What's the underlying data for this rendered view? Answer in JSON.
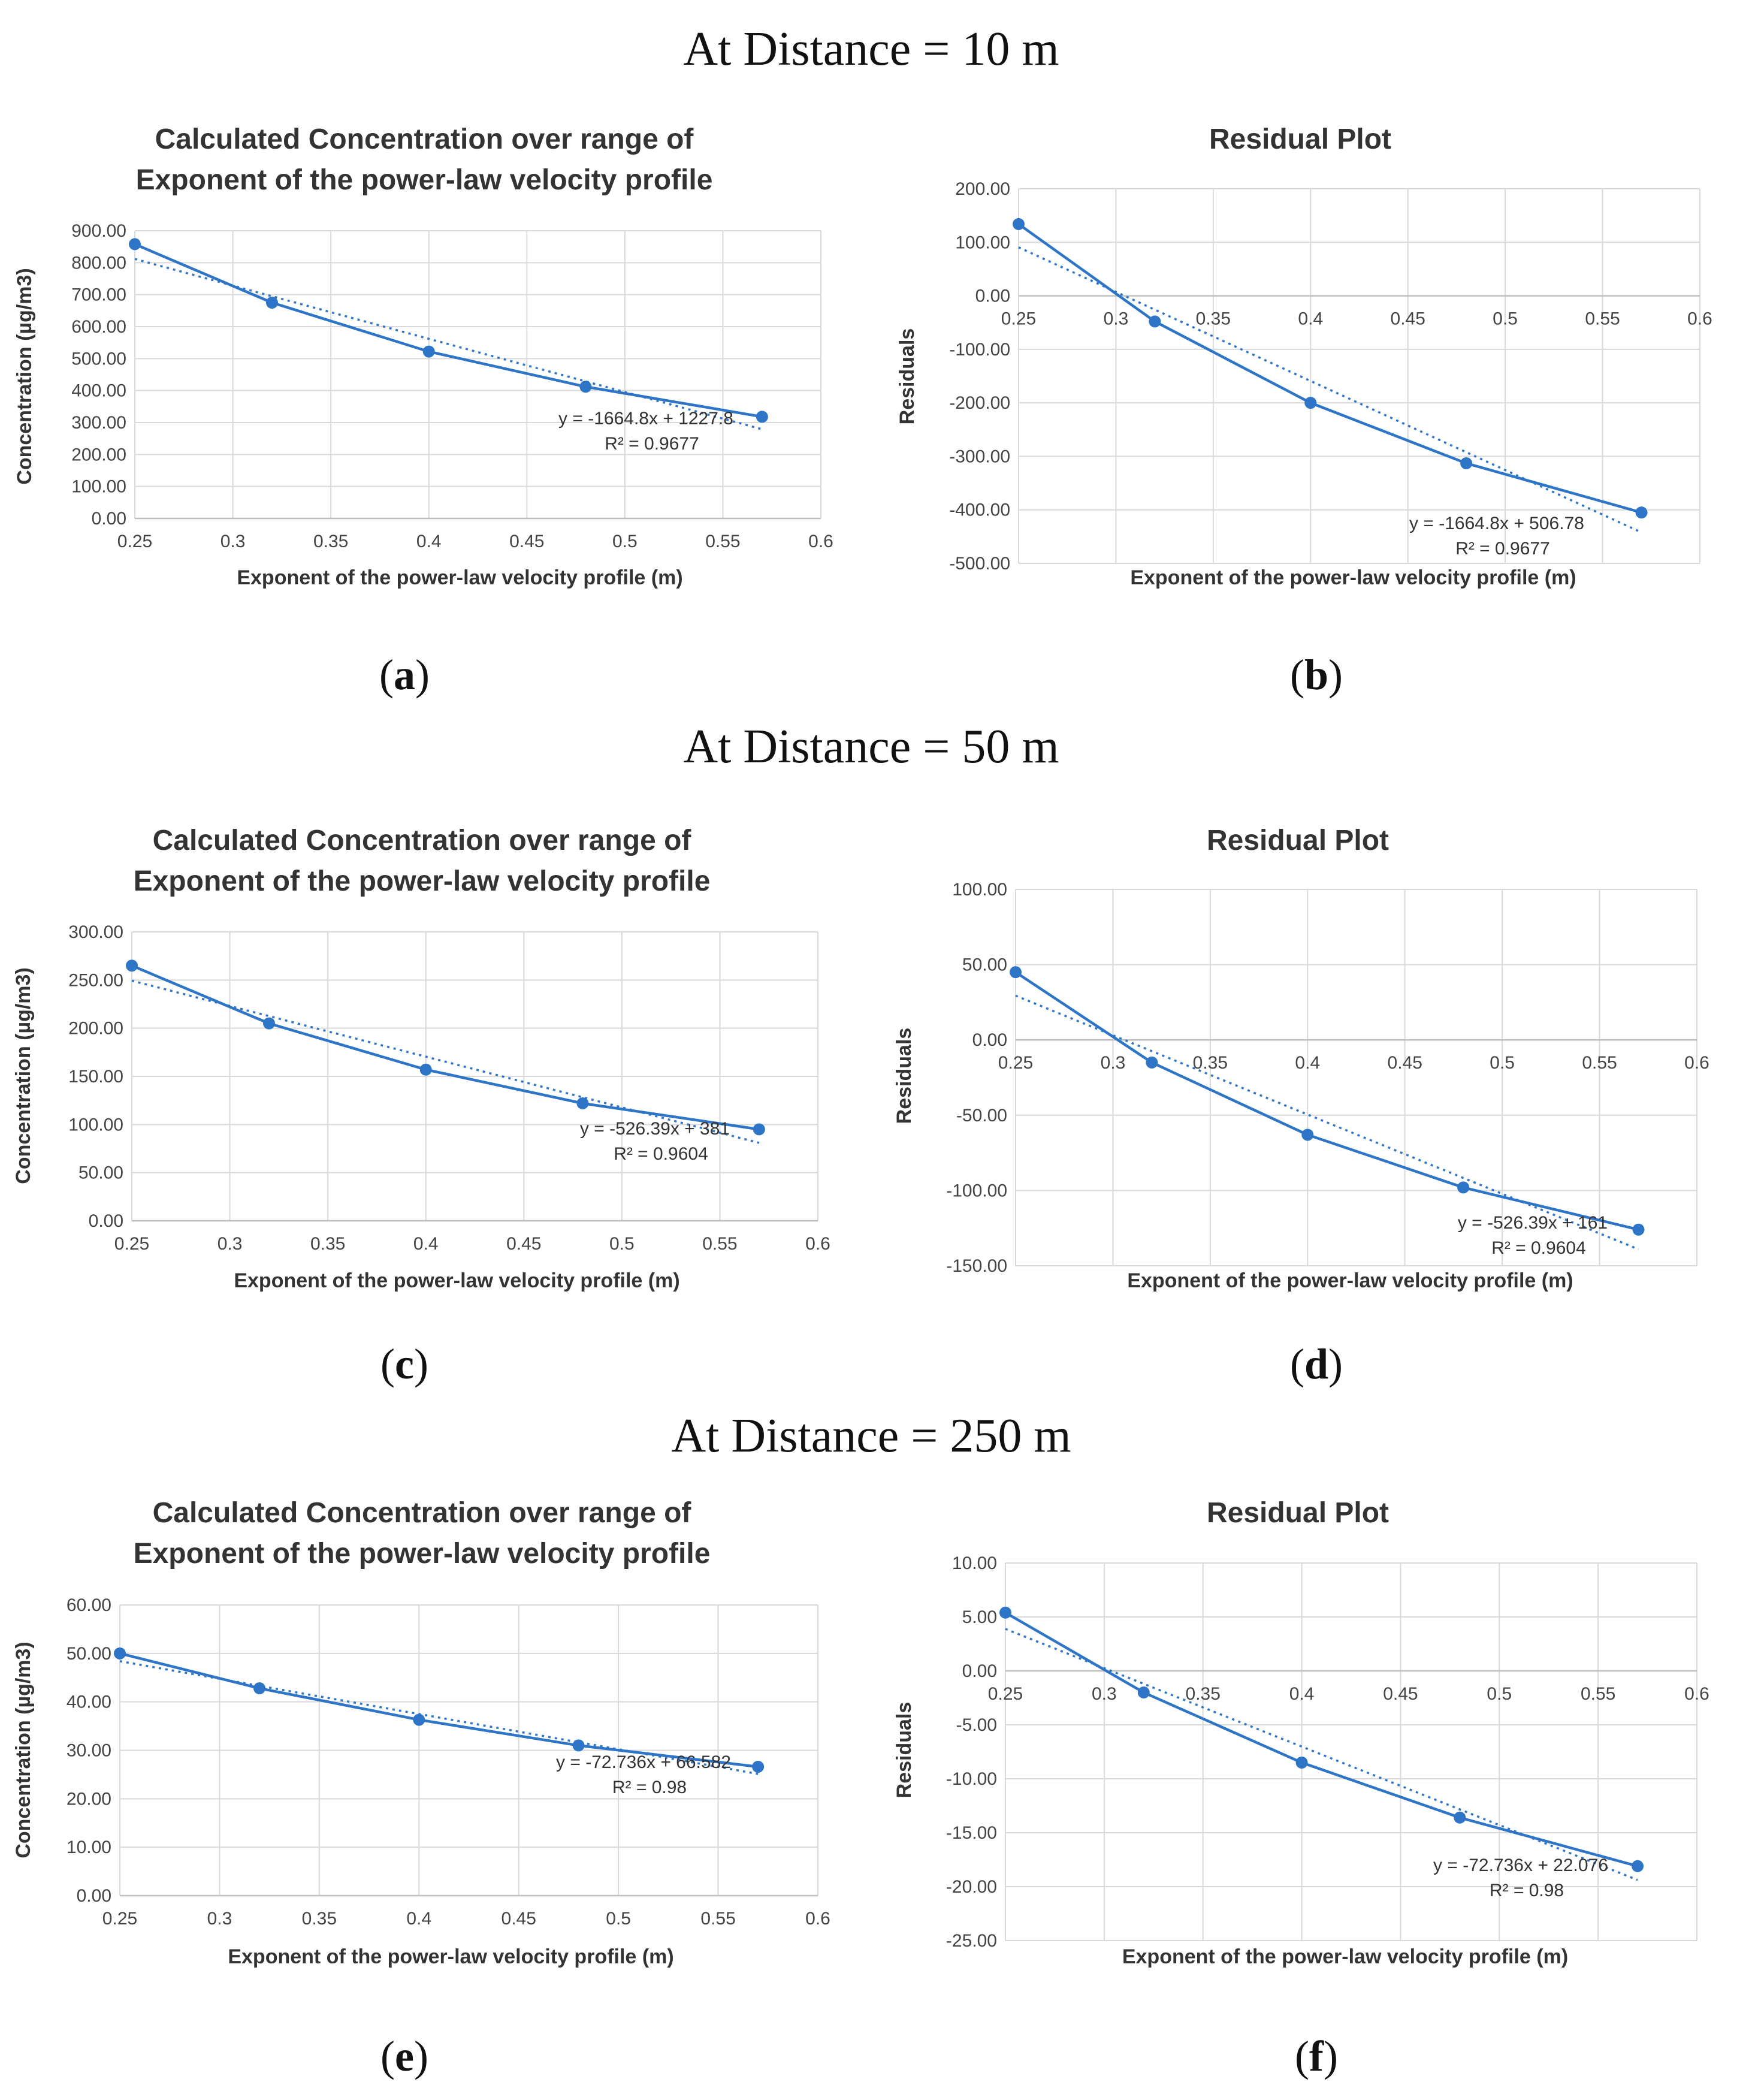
{
  "sections": [
    {
      "title": "At Distance = 10 m"
    },
    {
      "title": "At Distance = 50 m"
    },
    {
      "title": "At Distance = 250 m"
    }
  ],
  "chart_data": [
    {
      "id": "a",
      "type": "line",
      "panel_letter": "a",
      "title": [
        "Calculated Concentration over range of",
        "Exponent of the power-law velocity profile"
      ],
      "xlabel": "Exponent of the power-law velocity profile (m)",
      "ylabel": "Concentration (µg/m3)",
      "xlim": [
        0.25,
        0.6
      ],
      "ylim": [
        0,
        900
      ],
      "x_ticks": [
        "0.25",
        "0.3",
        "0.35",
        "0.4",
        "0.45",
        "0.5",
        "0.55",
        "0.6"
      ],
      "y_ticks": [
        "0.00",
        "100.00",
        "200.00",
        "300.00",
        "400.00",
        "500.00",
        "600.00",
        "700.00",
        "800.00",
        "900.00"
      ],
      "x": [
        0.25,
        0.32,
        0.4,
        0.48,
        0.57
      ],
      "y": [
        858,
        675,
        522,
        412,
        318
      ],
      "trendline": {
        "slope": -1664.8,
        "intercept": 1227.8,
        "x_range": [
          0.25,
          0.57
        ]
      },
      "equation": "y = -1664.8x + 1227.8",
      "r2": "R² = 0.9677",
      "xaxis_at": "bottom"
    },
    {
      "id": "b",
      "type": "line",
      "panel_letter": "b",
      "title": [
        "Residual Plot"
      ],
      "xlabel": "Exponent of the power-law velocity profile (m)",
      "ylabel": "Residuals",
      "xlim": [
        0.25,
        0.6
      ],
      "ylim": [
        -500,
        200
      ],
      "x_ticks": [
        "0.25",
        "0.3",
        "0.35",
        "0.4",
        "0.45",
        "0.5",
        "0.55",
        "0.6"
      ],
      "y_ticks": [
        "-500.00",
        "-400.00",
        "-300.00",
        "-200.00",
        "-100.00",
        "0.00",
        "100.00",
        "200.00"
      ],
      "x": [
        0.25,
        0.32,
        0.4,
        0.48,
        0.57
      ],
      "y": [
        134,
        -48,
        -200,
        -313,
        -405
      ],
      "trendline": {
        "slope": -1664.8,
        "intercept": 506.78,
        "x_range": [
          0.25,
          0.57
        ]
      },
      "equation": "y = -1664.8x + 506.78",
      "r2": "R² = 0.9677",
      "xaxis_at": "zero"
    },
    {
      "id": "c",
      "type": "line",
      "panel_letter": "c",
      "title": [
        "Calculated Concentration over range of",
        "Exponent of the power-law velocity profile"
      ],
      "xlabel": "Exponent of the power-law velocity profile (m)",
      "ylabel": "Concentration (µg/m3)",
      "xlim": [
        0.25,
        0.6
      ],
      "ylim": [
        0,
        300
      ],
      "x_ticks": [
        "0.25",
        "0.3",
        "0.35",
        "0.4",
        "0.45",
        "0.5",
        "0.55",
        "0.6"
      ],
      "y_ticks": [
        "0.00",
        "50.00",
        "100.00",
        "150.00",
        "200.00",
        "250.00",
        "300.00"
      ],
      "x": [
        0.25,
        0.32,
        0.4,
        0.48,
        0.57
      ],
      "y": [
        265,
        205,
        157,
        122,
        95
      ],
      "trendline": {
        "slope": -526.39,
        "intercept": 381,
        "x_range": [
          0.25,
          0.57
        ]
      },
      "equation": "y = -526.39x + 381",
      "r2": "R² = 0.9604",
      "xaxis_at": "bottom"
    },
    {
      "id": "d",
      "type": "line",
      "panel_letter": "d",
      "title": [
        "Residual Plot"
      ],
      "xlabel": "Exponent of the power-law velocity profile (m)",
      "ylabel": "Residuals",
      "xlim": [
        0.25,
        0.6
      ],
      "ylim": [
        -150,
        100
      ],
      "x_ticks": [
        "0.25",
        "0.3",
        "0.35",
        "0.4",
        "0.45",
        "0.5",
        "0.55",
        "0.6"
      ],
      "y_ticks": [
        "-150.00",
        "-100.00",
        "-50.00",
        "0.00",
        "50.00",
        "100.00"
      ],
      "x": [
        0.25,
        0.32,
        0.4,
        0.48,
        0.57
      ],
      "y": [
        45,
        -15,
        -63,
        -98,
        -126
      ],
      "trendline": {
        "slope": -526.39,
        "intercept": 161,
        "x_range": [
          0.25,
          0.57
        ]
      },
      "equation": "y = -526.39x + 161",
      "r2": "R² = 0.9604",
      "xaxis_at": "zero"
    },
    {
      "id": "e",
      "type": "line",
      "panel_letter": "e",
      "title": [
        "Calculated Concentration over range of",
        "Exponent of the power-law velocity profile"
      ],
      "xlabel": "Exponent of the power-law velocity profile (m)",
      "ylabel": "Concentration (µg/m3)",
      "xlim": [
        0.25,
        0.6
      ],
      "ylim": [
        0,
        60
      ],
      "x_ticks": [
        "0.25",
        "0.3",
        "0.35",
        "0.4",
        "0.45",
        "0.5",
        "0.55",
        "0.6"
      ],
      "y_ticks": [
        "0.00",
        "10.00",
        "20.00",
        "30.00",
        "40.00",
        "50.00",
        "60.00"
      ],
      "x": [
        0.25,
        0.32,
        0.4,
        0.48,
        0.57
      ],
      "y": [
        50,
        42.8,
        36.3,
        31,
        26.6
      ],
      "trendline": {
        "slope": -72.736,
        "intercept": 66.582,
        "x_range": [
          0.25,
          0.57
        ]
      },
      "equation": "y = -72.736x + 66.582",
      "r2": "R² = 0.98",
      "xaxis_at": "bottom"
    },
    {
      "id": "f",
      "type": "line",
      "panel_letter": "f",
      "title": [
        "Residual Plot"
      ],
      "xlabel": "Exponent of the power-law velocity profile (m)",
      "ylabel": "Residuals",
      "xlim": [
        0.25,
        0.6
      ],
      "ylim": [
        -25,
        10
      ],
      "x_ticks": [
        "0.25",
        "0.3",
        "0.35",
        "0.4",
        "0.45",
        "0.5",
        "0.55",
        "0.6"
      ],
      "y_ticks": [
        "-25.00",
        "-20.00",
        "-15.00",
        "-10.00",
        "-5.00",
        "0.00",
        "5.00",
        "10.00"
      ],
      "x": [
        0.25,
        0.32,
        0.4,
        0.48,
        0.57
      ],
      "y": [
        5.4,
        -2,
        -8.5,
        -13.6,
        -18.1
      ],
      "trendline": {
        "slope": -72.736,
        "intercept": 22.076,
        "x_range": [
          0.25,
          0.57
        ]
      },
      "equation": "y = -72.736x + 22.076",
      "r2": "R² = 0.98",
      "xaxis_at": "zero"
    }
  ]
}
